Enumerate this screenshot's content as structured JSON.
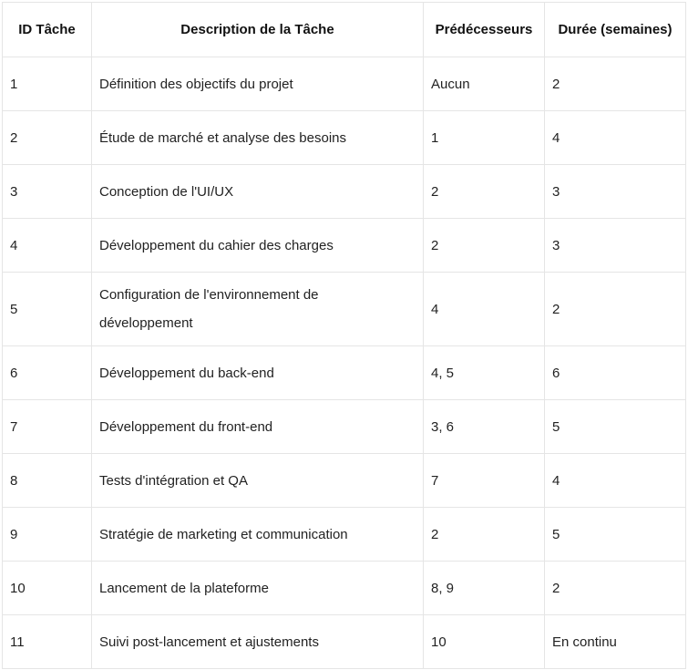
{
  "table": {
    "headers": [
      "ID Tâche",
      "Description de la Tâche",
      "Prédécesseurs",
      "Durée (semaines)"
    ],
    "rows": [
      [
        "1",
        "Définition des objectifs du projet",
        "Aucun",
        "2"
      ],
      [
        "2",
        "Étude de marché et analyse des besoins",
        "1",
        "4"
      ],
      [
        "3",
        "Conception de l'UI/UX",
        "2",
        "3"
      ],
      [
        "4",
        "Développement du cahier des charges",
        "2",
        "3"
      ],
      [
        "5",
        "Configuration de l'environnement de développement",
        "4",
        "2"
      ],
      [
        "6",
        "Développement du back-end",
        "4, 5",
        "6"
      ],
      [
        "7",
        "Développement du front-end",
        "3, 6",
        "5"
      ],
      [
        "8",
        "Tests d'intégration et QA",
        "7",
        "4"
      ],
      [
        "9",
        "Stratégie de marketing et communication",
        "2",
        "5"
      ],
      [
        "10",
        "Lancement de la plateforme",
        "8, 9",
        "2"
      ],
      [
        "11",
        "Suivi post-lancement et ajustements",
        "10",
        "En continu"
      ]
    ]
  }
}
